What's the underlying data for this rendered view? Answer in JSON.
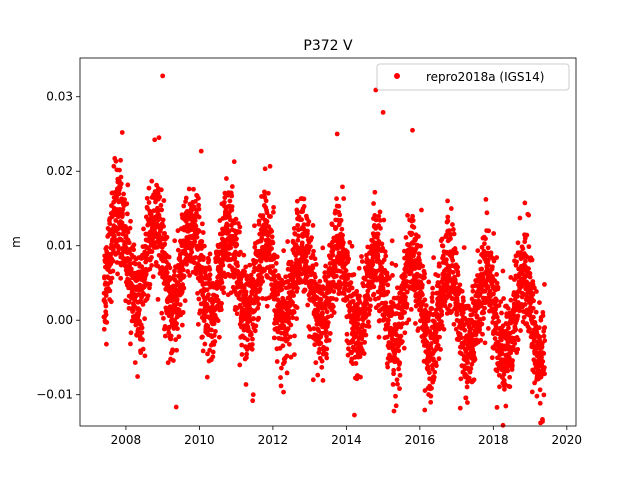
{
  "chart_data": {
    "type": "scatter",
    "title": "P372 V",
    "xlabel": "",
    "ylabel": "m",
    "xlim": [
      2006.75,
      2020.25
    ],
    "ylim": [
      -0.0142,
      0.0352
    ],
    "x_ticks": [
      2008,
      2010,
      2012,
      2014,
      2016,
      2018,
      2020
    ],
    "x_tick_labels": [
      "2008",
      "2010",
      "2012",
      "2014",
      "2016",
      "2018",
      "2020"
    ],
    "y_ticks": [
      -0.01,
      0.0,
      0.01,
      0.02,
      0.03
    ],
    "y_tick_labels": [
      "−0.01",
      "0.00",
      "0.01",
      "0.02",
      "0.03"
    ],
    "grid": false,
    "legend_position": "top-right",
    "series": [
      {
        "name": "repro2018a (IGS14)",
        "color": "#ff0000",
        "marker": "circle",
        "x_range": [
          2007.4,
          2019.4
        ],
        "linear_trend": {
          "value_at_start": 0.0085,
          "value_at_end": 0.0
        },
        "annual_amplitude": 0.0056,
        "peak_fraction_of_year": 0.8,
        "noise_sd": 0.0034,
        "outliers": [
          {
            "x": 2009.0,
            "y": 0.0328
          },
          {
            "x": 2014.8,
            "y": 0.0309
          },
          {
            "x": 2015.0,
            "y": 0.0279
          },
          {
            "x": 2015.8,
            "y": 0.0255
          },
          {
            "x": 2007.9,
            "y": 0.0252
          },
          {
            "x": 2013.75,
            "y": 0.025
          },
          {
            "x": 2008.9,
            "y": 0.0245
          },
          {
            "x": 2010.05,
            "y": 0.0227
          },
          {
            "x": 2011.45,
            "y": -0.0108
          },
          {
            "x": 2017.1,
            "y": -0.0118
          },
          {
            "x": 2018.1,
            "y": -0.0117
          },
          {
            "x": 2013.1,
            "y": -0.008
          }
        ]
      }
    ]
  }
}
